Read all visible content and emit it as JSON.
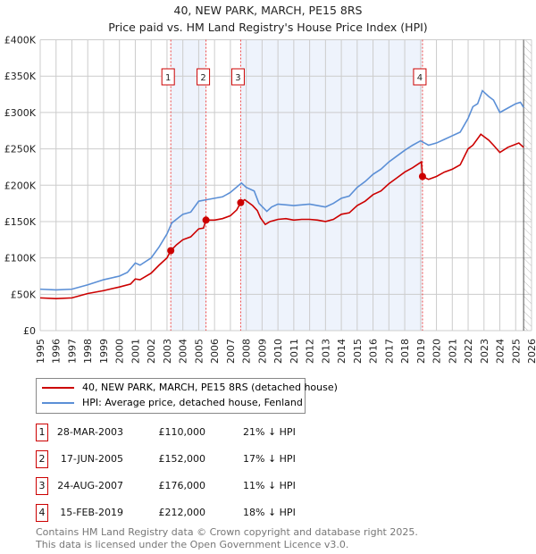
{
  "chart_data": {
    "type": "line",
    "title": "40, NEW PARK, MARCH, PE15 8RS",
    "subtitle": "Price paid vs. HM Land Registry's House Price Index (HPI)",
    "xlim": [
      1995,
      2026
    ],
    "ylim": [
      0,
      400000
    ],
    "x_ticks": [
      1995,
      1996,
      1997,
      1998,
      1999,
      2000,
      2001,
      2002,
      2003,
      2004,
      2005,
      2006,
      2007,
      2008,
      2009,
      2010,
      2011,
      2012,
      2013,
      2014,
      2015,
      2016,
      2017,
      2018,
      2019,
      2020,
      2021,
      2022,
      2023,
      2024,
      2025,
      2026
    ],
    "y_ticks": [
      {
        "v": 0,
        "label": "£0"
      },
      {
        "v": 50000,
        "label": "£50K"
      },
      {
        "v": 100000,
        "label": "£100K"
      },
      {
        "v": 150000,
        "label": "£150K"
      },
      {
        "v": 200000,
        "label": "£200K"
      },
      {
        "v": 250000,
        "label": "£250K"
      },
      {
        "v": 300000,
        "label": "£300K"
      },
      {
        "v": 350000,
        "label": "£350K"
      },
      {
        "v": 400000,
        "label": "£400K"
      }
    ],
    "grid": true,
    "shaded_ranges": [
      [
        2003.24,
        2005.46
      ],
      [
        2007.65,
        2019.12
      ]
    ],
    "hatched_from": 2025.5,
    "series": [
      {
        "name": "40, NEW PARK, MARCH, PE15 8RS (detached house)",
        "color": "#cc0000",
        "points": [
          [
            1995,
            45
          ],
          [
            1996,
            44
          ],
          [
            1997,
            45
          ],
          [
            1998,
            51
          ],
          [
            1999,
            55
          ],
          [
            2000,
            60
          ],
          [
            2000.7,
            64
          ],
          [
            2001,
            71
          ],
          [
            2001.3,
            70
          ],
          [
            2002,
            79
          ],
          [
            2002.5,
            90
          ],
          [
            2003,
            100
          ],
          [
            2003.24,
            110
          ],
          [
            2003.6,
            118
          ],
          [
            2004,
            125
          ],
          [
            2004.5,
            129
          ],
          [
            2005,
            140
          ],
          [
            2005.3,
            141
          ],
          [
            2005.46,
            152
          ],
          [
            2006,
            152
          ],
          [
            2006.5,
            154
          ],
          [
            2007,
            158
          ],
          [
            2007.4,
            166
          ],
          [
            2007.65,
            176
          ],
          [
            2007.9,
            180
          ],
          [
            2008.4,
            172
          ],
          [
            2008.7,
            165
          ],
          [
            2008.9,
            155
          ],
          [
            2009.2,
            146
          ],
          [
            2009.5,
            150
          ],
          [
            2010,
            153
          ],
          [
            2010.5,
            154
          ],
          [
            2011,
            152
          ],
          [
            2011.5,
            153
          ],
          [
            2012,
            153
          ],
          [
            2012.5,
            152
          ],
          [
            2013,
            150
          ],
          [
            2013.5,
            153
          ],
          [
            2014,
            160
          ],
          [
            2014.5,
            162
          ],
          [
            2015,
            172
          ],
          [
            2015.5,
            178
          ],
          [
            2016,
            187
          ],
          [
            2016.5,
            192
          ],
          [
            2017,
            202
          ],
          [
            2017.5,
            210
          ],
          [
            2018,
            218
          ],
          [
            2018.5,
            224
          ],
          [
            2019.05,
            232
          ],
          [
            2019.12,
            212
          ],
          [
            2019.5,
            208
          ],
          [
            2020,
            212
          ],
          [
            2020.5,
            218
          ],
          [
            2021,
            222
          ],
          [
            2021.5,
            228
          ],
          [
            2022,
            250
          ],
          [
            2022.3,
            255
          ],
          [
            2022.8,
            270
          ],
          [
            2023.3,
            262
          ],
          [
            2023.6,
            255
          ],
          [
            2024,
            245
          ],
          [
            2024.5,
            252
          ],
          [
            2025.2,
            258
          ],
          [
            2025.5,
            252
          ]
        ]
      },
      {
        "name": "HPI: Average price, detached house, Fenland",
        "color": "#5b8fd6",
        "points": [
          [
            1995,
            57
          ],
          [
            1996,
            56
          ],
          [
            1997,
            57
          ],
          [
            1998,
            63
          ],
          [
            1999,
            70
          ],
          [
            2000,
            75
          ],
          [
            2000.5,
            80
          ],
          [
            2001,
            93
          ],
          [
            2001.3,
            90
          ],
          [
            2002,
            100
          ],
          [
            2002.5,
            115
          ],
          [
            2003,
            133
          ],
          [
            2003.3,
            148
          ],
          [
            2004,
            160
          ],
          [
            2004.5,
            163
          ],
          [
            2005,
            178
          ],
          [
            2005.5,
            180
          ],
          [
            2006,
            182
          ],
          [
            2006.5,
            184
          ],
          [
            2007,
            190
          ],
          [
            2007.7,
            203
          ],
          [
            2008,
            197
          ],
          [
            2008.5,
            192
          ],
          [
            2008.8,
            175
          ],
          [
            2009.3,
            164
          ],
          [
            2009.6,
            170
          ],
          [
            2010,
            174
          ],
          [
            2011,
            172
          ],
          [
            2012,
            174
          ],
          [
            2012.5,
            172
          ],
          [
            2013,
            170
          ],
          [
            2013.5,
            175
          ],
          [
            2014,
            182
          ],
          [
            2014.5,
            185
          ],
          [
            2015,
            197
          ],
          [
            2015.5,
            205
          ],
          [
            2016,
            215
          ],
          [
            2016.5,
            222
          ],
          [
            2017,
            232
          ],
          [
            2017.5,
            240
          ],
          [
            2018,
            248
          ],
          [
            2018.5,
            255
          ],
          [
            2019,
            261
          ],
          [
            2019.5,
            255
          ],
          [
            2020,
            258
          ],
          [
            2020.5,
            263
          ],
          [
            2021,
            268
          ],
          [
            2021.5,
            273
          ],
          [
            2022,
            292
          ],
          [
            2022.3,
            308
          ],
          [
            2022.6,
            312
          ],
          [
            2022.9,
            330
          ],
          [
            2023.3,
            322
          ],
          [
            2023.6,
            317
          ],
          [
            2024,
            300
          ],
          [
            2024.5,
            306
          ],
          [
            2025,
            312
          ],
          [
            2025.3,
            314
          ],
          [
            2025.5,
            307
          ]
        ]
      }
    ],
    "markers": [
      {
        "label": "1",
        "x": 2003.24,
        "y": 110
      },
      {
        "label": "2",
        "x": 2005.46,
        "y": 152
      },
      {
        "label": "3",
        "x": 2007.65,
        "y": 176
      },
      {
        "label": "4",
        "x": 2019.12,
        "y": 212
      }
    ]
  },
  "legend": {
    "red": "40, NEW PARK, MARCH, PE15 8RS (detached house)",
    "blue": "HPI: Average price, detached house, Fenland"
  },
  "sales": [
    {
      "num": "1",
      "date": "28-MAR-2003",
      "price": "£110,000",
      "hpi": "21% ↓ HPI"
    },
    {
      "num": "2",
      "date": "17-JUN-2005",
      "price": "£152,000",
      "hpi": "17% ↓ HPI"
    },
    {
      "num": "3",
      "date": "24-AUG-2007",
      "price": "£176,000",
      "hpi": "11% ↓ HPI"
    },
    {
      "num": "4",
      "date": "15-FEB-2019",
      "price": "£212,000",
      "hpi": "18% ↓ HPI"
    }
  ],
  "footer": {
    "line1": "Contains HM Land Registry data © Crown copyright and database right 2025.",
    "line2": "This data is licensed under the Open Government Licence v3.0."
  }
}
